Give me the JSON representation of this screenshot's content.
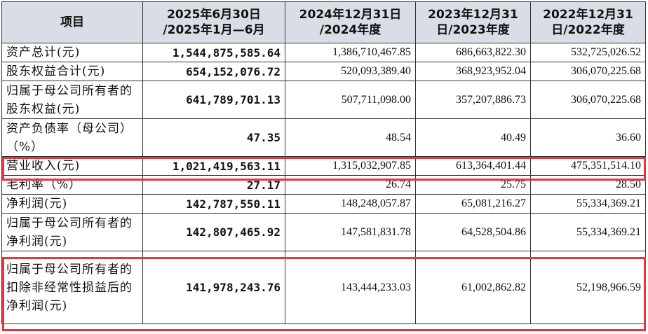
{
  "table": {
    "headers": [
      "项目",
      "2025年6月30日\n/2025年1月—6月",
      "2024年12月31日\n/2024年度",
      "2023年12月31\n日/2023年度",
      "2022年12月31\n日/2022年度"
    ],
    "rows": [
      {
        "label": "资产总计(元)",
        "values": [
          "1,544,875,585.64",
          "1,386,710,467.85",
          "686,663,822.30",
          "532,725,026.52"
        ]
      },
      {
        "label": "股东权益合计(元)",
        "values": [
          "654,152,076.72",
          "520,093,389.40",
          "368,923,952.04",
          "306,070,225.68"
        ]
      },
      {
        "label": "归属于母公司所有者的股东权益(元)",
        "values": [
          "641,789,701.13",
          "507,711,098.00",
          "357,207,886.73",
          "306,070,225.68"
        ]
      },
      {
        "label": "资产负债率（母公司）（%）",
        "values": [
          "47.35",
          "48.54",
          "40.49",
          "36.60"
        ]
      },
      {
        "label": "营业收入(元)",
        "values": [
          "1,021,419,563.11",
          "1,315,032,907.85",
          "613,364,401.44",
          "475,351,514.10"
        ]
      },
      {
        "label": "毛利率（%）",
        "values": [
          "27.17",
          "26.74",
          "25.75",
          "28.50"
        ]
      },
      {
        "label": "净利润(元)",
        "values": [
          "142,787,550.11",
          "148,248,057.87",
          "65,081,216.27",
          "55,334,369.21"
        ]
      },
      {
        "label": "归属于母公司所有者的净利润(元)",
        "values": [
          "142,807,465.92",
          "147,581,831.78",
          "64,528,504.86",
          "55,334,369.21"
        ]
      },
      {
        "label": "归属于母公司所有者的扣除非经常性损益后的净利润(元)",
        "values": [
          "141,978,243.76",
          "143,444,233.03",
          "61,002,862.82",
          "52,198,966.59"
        ]
      }
    ]
  },
  "colors": {
    "header_bg": "#d9dee6",
    "highlight": "#e8343c"
  }
}
